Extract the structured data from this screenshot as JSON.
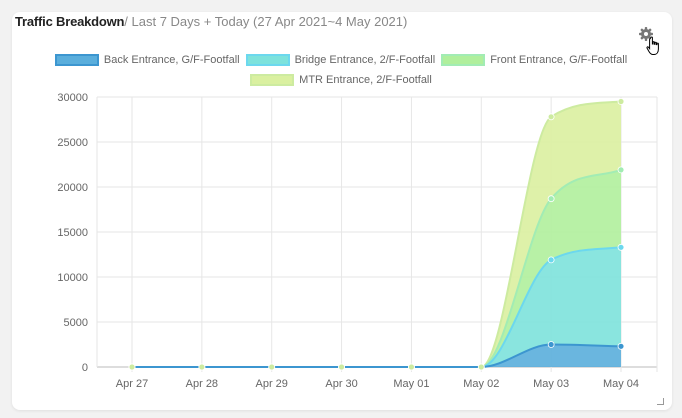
{
  "header": {
    "title": "Traffic Breakdown",
    "subtitle": "/ Last 7 Days + Today (27 Apr 2021~4 May 2021)"
  },
  "icons": {
    "settings": "gear-icon",
    "cursor": "hand-pointer-icon"
  },
  "chart_data": {
    "type": "area",
    "stacked": true,
    "title": "",
    "xlabel": "",
    "ylabel": "",
    "categories": [
      "Apr 27",
      "Apr 28",
      "Apr 29",
      "Apr 30",
      "May 01",
      "May 02",
      "May 03",
      "May 04"
    ],
    "ylim": [
      0,
      30000
    ],
    "yticks": [
      0,
      5000,
      10000,
      15000,
      20000,
      25000,
      30000
    ],
    "grid": true,
    "legend_position": "top",
    "series": [
      {
        "name": "Back Entrance, G/F-Footfall",
        "values": [
          0,
          0,
          0,
          0,
          0,
          0,
          2500,
          2300
        ],
        "fill": "#5aaedc",
        "stroke": "#3c96d0"
      },
      {
        "name": "Bridge Entrance, 2/F-Footfall",
        "values": [
          0,
          0,
          0,
          0,
          0,
          0,
          9400,
          11000
        ],
        "fill": "#7de2dc",
        "stroke": "#6cd8ee"
      },
      {
        "name": "Front Entrance, G/F-Footfall",
        "values": [
          0,
          0,
          0,
          0,
          0,
          0,
          6800,
          8600
        ],
        "fill": "#b0ef9c",
        "stroke": "#a2ecb4"
      },
      {
        "name": "MTR Entrance, 2/F-Footfall",
        "values": [
          0,
          0,
          0,
          0,
          0,
          0,
          9100,
          7600
        ],
        "fill": "#daf0a0",
        "stroke": "#cdeba0"
      }
    ]
  }
}
